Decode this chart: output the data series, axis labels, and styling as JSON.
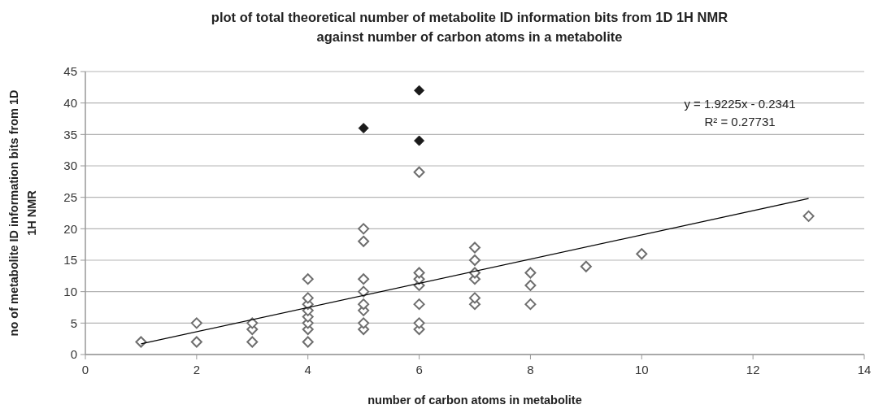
{
  "chart_data": {
    "type": "scatter",
    "title": "plot of total theoretical number of metabolite ID information bits from 1D 1H NMR\nagainst number of carbon atoms in a metabolite",
    "xlabel": "number of carbon atoms in metabolite",
    "ylabel": "no of  metabolite ID information bits from 1D\n1H NMR",
    "xlim": [
      0,
      14
    ],
    "xticks": [
      0,
      2,
      4,
      6,
      8,
      10,
      12,
      14
    ],
    "ylim": [
      0,
      45
    ],
    "yticks": [
      0,
      5,
      10,
      15,
      20,
      25,
      30,
      35,
      40,
      45
    ],
    "grid": "y",
    "marker": "diamond",
    "annotations": [
      "y = 1.9225x - 0.2341",
      "R² = 0.27731"
    ],
    "series": [
      {
        "color": "#6e6e6e",
        "x": [
          1,
          2,
          2,
          3,
          3,
          3,
          4,
          4,
          4,
          4,
          4,
          4,
          4,
          4,
          5,
          5,
          5,
          5,
          5,
          5,
          5,
          5,
          6,
          6,
          6,
          6,
          6,
          6,
          6,
          7,
          7,
          7,
          7,
          7,
          7,
          8,
          8,
          8,
          9,
          10,
          13
        ],
        "values": [
          2,
          2,
          5,
          2,
          4,
          5,
          2,
          4,
          5,
          6,
          7,
          8,
          9,
          12,
          4,
          5,
          7,
          8,
          10,
          12,
          18,
          20,
          4,
          5,
          8,
          11,
          12,
          13,
          29,
          8,
          9,
          12,
          13,
          15,
          17,
          8,
          11,
          13,
          14,
          16,
          22
        ]
      },
      {
        "color": "#1a1a1a",
        "x": [
          5,
          6,
          6
        ],
        "values": [
          36,
          42,
          34
        ]
      },
      {
        "type": "line",
        "color": "#000000",
        "x": [
          1,
          13
        ],
        "values": [
          1.7,
          24.8
        ],
        "marker": "none"
      }
    ]
  }
}
